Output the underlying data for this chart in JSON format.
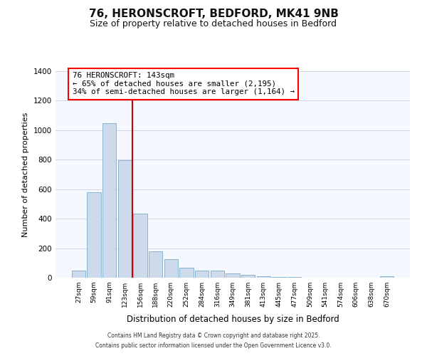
{
  "title": "76, HERONSCROFT, BEDFORD, MK41 9NB",
  "subtitle": "Size of property relative to detached houses in Bedford",
  "xlabel": "Distribution of detached houses by size in Bedford",
  "ylabel": "Number of detached properties",
  "bar_color": "#ccdaeb",
  "bar_edge_color": "#7aaac8",
  "background_color": "#ffffff",
  "plot_bg_color": "#f5f8ff",
  "grid_color": "#d0d5e8",
  "vline_color": "#cc0000",
  "annotation_text_line1": "76 HERONSCROFT: 143sqm",
  "annotation_text_line2": "← 65% of detached houses are smaller (2,195)",
  "annotation_text_line3": "34% of semi-detached houses are larger (1,164) →",
  "ylim": [
    0,
    1400
  ],
  "yticks": [
    0,
    200,
    400,
    600,
    800,
    1000,
    1200,
    1400
  ],
  "categories": [
    "27sqm",
    "59sqm",
    "91sqm",
    "123sqm",
    "156sqm",
    "188sqm",
    "220sqm",
    "252sqm",
    "284sqm",
    "316sqm",
    "349sqm",
    "381sqm",
    "413sqm",
    "445sqm",
    "477sqm",
    "509sqm",
    "541sqm",
    "574sqm",
    "606sqm",
    "638sqm",
    "670sqm"
  ],
  "values": [
    50,
    580,
    1050,
    795,
    435,
    180,
    125,
    70,
    50,
    50,
    28,
    18,
    8,
    4,
    4,
    0,
    0,
    0,
    0,
    0,
    10
  ],
  "vline_bar_index": 4,
  "footer_line1": "Contains HM Land Registry data © Crown copyright and database right 2025.",
  "footer_line2": "Contains public sector information licensed under the Open Government Licence v3.0."
}
